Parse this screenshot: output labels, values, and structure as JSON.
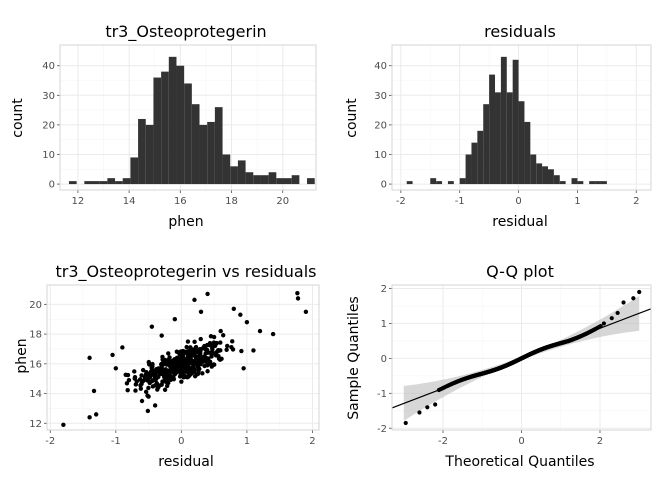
{
  "chart_data": [
    {
      "type": "bar",
      "title": "tr3_Osteoprotegerin",
      "xlabel": "phen",
      "ylabel": "count",
      "xlim": [
        11.3,
        21.3
      ],
      "ylim": [
        -2,
        47
      ],
      "xticks": [
        12,
        14,
        16,
        18,
        20
      ],
      "yticks": [
        0,
        10,
        20,
        30,
        40
      ],
      "grid": true,
      "bin_start": 11.65,
      "bin_width": 0.3,
      "counts": [
        1,
        0,
        1,
        1,
        1,
        2,
        1,
        2,
        9,
        22,
        20,
        36,
        38,
        43,
        40,
        34,
        27,
        20,
        21,
        26,
        10,
        6,
        8,
        4,
        3,
        3,
        4,
        2,
        2,
        3,
        0,
        2
      ]
    },
    {
      "type": "bar",
      "title": "residuals",
      "xlabel": "residual",
      "ylabel": "count",
      "xlim": [
        -2.15,
        2.25
      ],
      "ylim": [
        -2,
        47
      ],
      "xticks": [
        -2,
        -1,
        0,
        1,
        2
      ],
      "yticks": [
        0,
        10,
        20,
        30,
        40
      ],
      "grid": true,
      "bin_start": -1.9,
      "bin_width": 0.1,
      "counts": [
        1,
        0,
        0,
        0,
        2,
        1,
        0,
        1,
        0,
        2,
        10,
        14,
        18,
        27,
        37,
        31,
        43,
        31,
        42,
        28,
        21,
        10,
        7,
        6,
        5,
        3,
        1,
        0,
        2,
        1,
        0,
        1,
        1,
        1
      ]
    },
    {
      "type": "scatter",
      "title": "tr3_Osteoprotegerin vs residuals",
      "xlabel": "residual",
      "ylabel": "phen",
      "xlim": [
        -2.05,
        2.1
      ],
      "ylim": [
        11.55,
        21.3
      ],
      "xticks": [
        -2,
        -1,
        0,
        1,
        2
      ],
      "yticks": [
        12,
        14,
        16,
        18,
        20
      ],
      "grid": true,
      "points": [
        [
          -1.8,
          11.9
        ],
        [
          -1.4,
          12.4
        ],
        [
          -1.3,
          12.6
        ],
        [
          -1.4,
          16.4
        ],
        [
          1.77,
          20.75
        ],
        [
          1.9,
          19.5
        ],
        [
          1.78,
          20.4
        ],
        [
          1.4,
          18.0
        ],
        [
          1.2,
          18.2
        ],
        [
          1.0,
          18.8
        ],
        [
          0.9,
          19.3
        ],
        [
          0.8,
          19.7
        ],
        [
          0.4,
          20.7
        ],
        [
          0.2,
          20.3
        ],
        [
          -1.0,
          15.7
        ],
        [
          -1.05,
          16.6
        ],
        [
          -0.9,
          17.1
        ],
        [
          -0.6,
          13.5
        ],
        [
          -0.4,
          13.2
        ],
        [
          -0.5,
          13.8
        ],
        [
          -0.8,
          14.9
        ],
        [
          -0.7,
          14.2
        ],
        [
          -0.3,
          14.6
        ],
        [
          0.6,
          18.2
        ],
        [
          0.5,
          17.8
        ],
        [
          0.3,
          19.5
        ],
        [
          -0.1,
          19.0
        ],
        [
          0.1,
          17.5
        ],
        [
          0.7,
          17.2
        ],
        [
          1.1,
          16.9
        ],
        [
          0.95,
          15.7
        ],
        [
          0.4,
          15.5
        ],
        [
          -0.2,
          16.7
        ],
        [
          -0.45,
          18.5
        ],
        [
          -0.3,
          17.9
        ],
        [
          0.0,
          14.8
        ]
      ],
      "point_spread": {
        "n_cloud": 380,
        "slope": 1.75,
        "x_center": 0.0,
        "y_center": 15.9
      }
    },
    {
      "type": "scatter",
      "title": "Q-Q plot",
      "xlabel": "Theoretical Quantiles",
      "ylabel": "Sample Quantiles",
      "xlim": [
        -3.3,
        3.3
      ],
      "ylim": [
        -2.05,
        2.1
      ],
      "xticks": [
        -2,
        0,
        2
      ],
      "yticks": [
        -2,
        -1,
        0,
        1,
        2
      ],
      "grid": true,
      "reference_line": {
        "slope": 0.43,
        "intercept": 0.0
      },
      "confidence_band": true,
      "tail_points": [
        [
          -2.95,
          -1.85
        ],
        [
          -2.6,
          -1.55
        ],
        [
          -2.4,
          -1.4
        ],
        [
          -2.2,
          -1.32
        ],
        [
          2.1,
          1.0
        ],
        [
          2.3,
          1.15
        ],
        [
          2.45,
          1.3
        ],
        [
          2.6,
          1.6
        ],
        [
          2.85,
          1.72
        ],
        [
          3.0,
          1.9
        ]
      ],
      "n_points": 480
    }
  ]
}
